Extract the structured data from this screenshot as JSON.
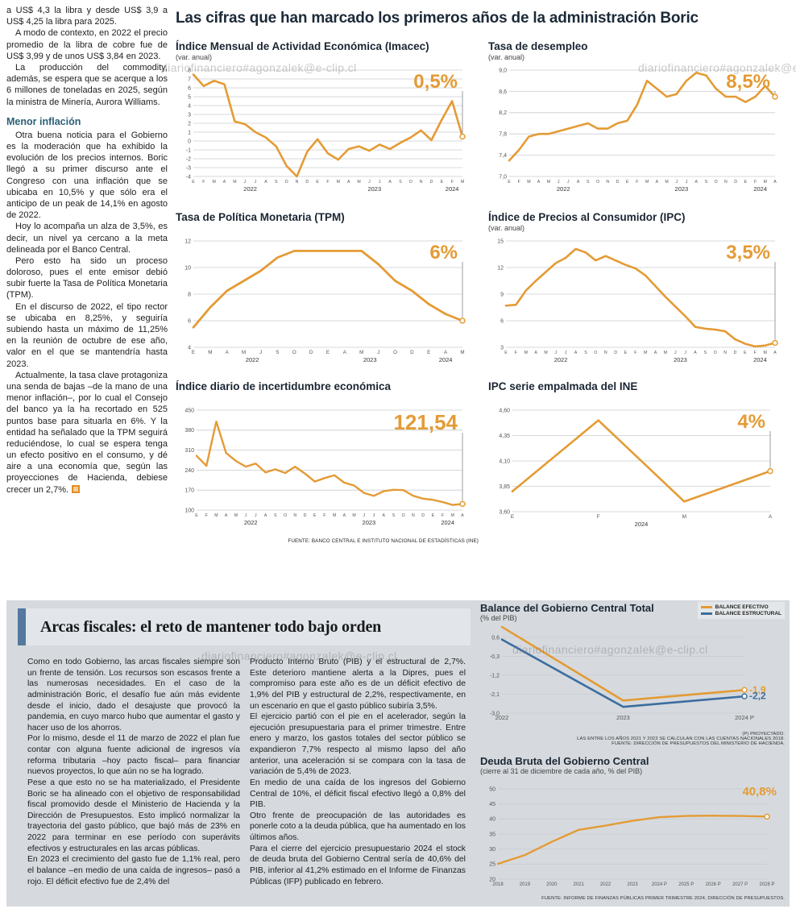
{
  "watermark": "diariofinanciero#agonzalek@e-clip.cl",
  "colors": {
    "orange": "#E49B35",
    "blue": "#3C6E9F",
    "navy": "#1C2A38",
    "teal": "#2B6077",
    "panel_gray": "#D6DADE",
    "grid": "#C8CCD1"
  },
  "headline": "Las cifras que han marcado los primeros años de la administración Boric",
  "left_column": {
    "paragraphs_top": [
      "a US$ 4,3 la libra y desde US$ 3,9 a US$ 4,25 la libra para 2025.",
      "A modo de contexto, en 2022 el precio promedio de la libra de cobre fue de US$ 3,99 y de unos US$ 3,84 en 2023.",
      "La producción del commodity, además, se espera que se acerque a los 6 millones de toneladas en 2025, según la ministra de Minería, Aurora Williams."
    ],
    "subhead": "Menor inflación",
    "paragraphs_bottom": [
      "Otra buena noticia para el Gobierno es la moderación que ha exhibido la evolución de los precios internos. Boric llegó a su primer discurso ante el Congreso con una inflación que se ubicaba en 10,5% y que sólo era el anticipo de un peak de 14,1% en agosto de 2022.",
      "Hoy lo acompaña un alza de 3,5%, es decir, un nivel ya cercano a la meta delineada por el Banco Central.",
      "Pero esto ha sido un proceso doloroso, pues el ente emisor debió subir fuerte la Tasa de Política Monetaria (TPM).",
      "En el discurso de 2022, el tipo rector se ubicaba en 8,25%, y seguiría subiendo hasta un máximo de 11,25% en la reunión de octubre de ese año, valor en el que se mantendría hasta 2023.",
      "Actualmente, la tasa clave protagoniza una senda de bajas –de la mano de una menor inflación–, por lo cual el Consejo del banco ya la ha recortado en 525 puntos base para situarla en 6%. Y la entidad ha señalado que la TPM seguirá reduciéndose, lo cual se espera tenga un efecto positivo en el consumo, y dé aire a una economía que, según las proyecciones de Hacienda, debiese crecer un 2,7%."
    ]
  },
  "charts_source": "FUENTE: BANCO CENTRAL E INSTITUTO NACIONAL DE ESTADÍSTICAS (INE)",
  "fiscal_section": {
    "title": "Arcas fiscales: el reto de mantener todo bajo orden",
    "col1": [
      "Como en todo Gobierno, las arcas fiscales siempre son un frente de tensión. Los recursos son escasos frente a las numerosas necesidades. En el caso de la administración Boric, el desafío fue aún más evidente desde el inicio, dado el desajuste que provocó la pandemia, en cuyo marco hubo que aumentar el gasto y hacer uso de los ahorros.",
      "Por lo mismo, desde el 11 de marzo de 2022 el plan fue contar con alguna fuente adicional de ingresos vía reforma tributaria –hoy pacto fiscal– para financiar nuevos proyectos, lo que aún no se ha logrado.",
      "Pese a que esto no se ha materializado, el Presidente Boric se ha alineado con el objetivo de responsabilidad fiscal promovido desde el Ministerio de Hacienda y la Dirección de Presupuestos. Esto implicó normalizar la trayectoria del gasto público, que bajó más de 23% en 2022 para terminar en ese período con superávits efectivos y estructurales en las arcas públicas.",
      "En 2023 el crecimiento del gasto fue de 1,1% real, pero el balance –en medio de una caída de ingresos– pasó a rojo. El déficit efectivo fue de 2,4% del"
    ],
    "col2": [
      "Producto Interno Bruto (PIB) y el estructural de 2,7%. Este deterioro mantiene alerta a la Dipres, pues el compromiso para este año es de un déficit efectivo de 1,9% del PIB y estructural de 2,2%, respectivamente, en un escenario en que el gasto público subiría 3,5%.",
      "El ejercicio partió con el pie en el acelerador, según la ejecución presupuestaria para el primer trimestre. Entre enero y marzo, los gastos totales del sector público se expandieron 7,7% respecto al mismo lapso del año anterior, una aceleración si se compara con la tasa de variación de 5,4% de 2023.",
      "En medio de una caída de los ingresos del Gobierno Central de 10%, el déficit fiscal efectivo llegó a 0,8% del PIB.",
      "Otro frente de preocupación de las autoridades es ponerle coto a la deuda pública, que ha aumentado en los últimos años.",
      "Para el cierre del ejercicio presupuestario 2024 el stock de deuda bruta del Gobierno Central sería de 40,6% del PIB, inferior al 41,2% estimado en el Informe de Finanzas Públicas (IFP) publicado en febrero."
    ]
  },
  "chart_data": [
    {
      "id": "imacec",
      "type": "line",
      "title": "Índice Mensual de Actividad Económica (Imacec)",
      "subtitle": "(var. anual)",
      "callout": "0,5%",
      "ylim": [
        -4,
        8
      ],
      "yticks": [
        "8",
        "7",
        "6",
        "5",
        "4",
        "3",
        "2",
        "1",
        "0",
        "-1",
        "-2",
        "-3",
        "-4"
      ],
      "x_labels": [
        "E",
        "F",
        "M",
        "A",
        "M",
        "J",
        "J",
        "A",
        "S",
        "O",
        "N",
        "D",
        "E",
        "F",
        "M",
        "A",
        "M",
        "J",
        "J",
        "A",
        "S",
        "O",
        "N",
        "D",
        "E",
        "F",
        "M"
      ],
      "year_groups": [
        {
          "label": "2022",
          "from": 0,
          "to": 11
        },
        {
          "label": "2023",
          "from": 12,
          "to": 23
        },
        {
          "label": "2024",
          "from": 24,
          "to": 26
        }
      ],
      "values": [
        7.5,
        6.2,
        6.8,
        6.4,
        2.2,
        1.9,
        1.0,
        0.4,
        -0.6,
        -2.8,
        -4.0,
        -1.2,
        0.2,
        -1.4,
        -2.1,
        -0.9,
        -0.6,
        -1.1,
        -0.4,
        -0.9,
        -0.2,
        0.4,
        1.2,
        0.1,
        2.4,
        4.5,
        0.5
      ]
    },
    {
      "id": "desempleo",
      "type": "line",
      "title": "Tasa de desempleo",
      "subtitle": "(var. anual)",
      "callout": "8,5%",
      "ylim": [
        7.0,
        9.0
      ],
      "yticks": [
        "9,0",
        "8,6",
        "8,2",
        "7,8",
        "7,4",
        "7,0"
      ],
      "x_labels": [
        "E",
        "F",
        "M",
        "A",
        "M",
        "J",
        "J",
        "A",
        "S",
        "O",
        "N",
        "D",
        "E",
        "F",
        "M",
        "A",
        "M",
        "J",
        "J",
        "A",
        "S",
        "O",
        "N",
        "D",
        "E",
        "F",
        "M",
        "A"
      ],
      "year_groups": [
        {
          "label": "2022",
          "from": 0,
          "to": 11
        },
        {
          "label": "2023",
          "from": 12,
          "to": 23
        },
        {
          "label": "2024",
          "from": 24,
          "to": 27
        }
      ],
      "values": [
        7.3,
        7.5,
        7.75,
        7.8,
        7.8,
        7.85,
        7.9,
        7.95,
        8.0,
        7.9,
        7.9,
        8.0,
        8.05,
        8.35,
        8.8,
        8.65,
        8.5,
        8.55,
        8.8,
        8.95,
        8.9,
        8.65,
        8.5,
        8.5,
        8.4,
        8.5,
        8.7,
        8.5
      ]
    },
    {
      "id": "tpm",
      "type": "line",
      "title": "Tasa de Política Monetaria (TPM)",
      "subtitle": "",
      "callout": "6%",
      "ylim": [
        4,
        12
      ],
      "yticks": [
        "12",
        "10",
        "8",
        "6",
        "4"
      ],
      "x_labels": [
        "E",
        "M",
        "A",
        "M",
        "J",
        "S",
        "O",
        "D",
        "E",
        "A",
        "M",
        "J",
        "O",
        "D",
        "E",
        "A",
        "M"
      ],
      "year_groups": [
        {
          "label": "2022",
          "from": 0,
          "to": 7
        },
        {
          "label": "2023",
          "from": 8,
          "to": 13
        },
        {
          "label": "2024",
          "from": 14,
          "to": 16
        }
      ],
      "values": [
        5.5,
        7.0,
        8.25,
        9.0,
        9.75,
        10.75,
        11.25,
        11.25,
        11.25,
        11.25,
        11.25,
        10.25,
        9.0,
        8.25,
        7.25,
        6.5,
        6.0
      ]
    },
    {
      "id": "ipc",
      "type": "line",
      "title": "Índice de Precios al Consumidor (IPC)",
      "subtitle": "(var. anual)",
      "callout": "3,5%",
      "ylim": [
        3,
        15
      ],
      "yticks": [
        "15",
        "12",
        "9",
        "6",
        "3"
      ],
      "x_labels": [
        "E",
        "F",
        "M",
        "A",
        "M",
        "J",
        "J",
        "A",
        "S",
        "O",
        "N",
        "D",
        "E",
        "F",
        "M",
        "A",
        "M",
        "J",
        "J",
        "A",
        "S",
        "O",
        "N",
        "D",
        "E",
        "F",
        "M",
        "A"
      ],
      "year_groups": [
        {
          "label": "2022",
          "from": 0,
          "to": 11
        },
        {
          "label": "2023",
          "from": 12,
          "to": 23
        },
        {
          "label": "2024",
          "from": 24,
          "to": 27
        }
      ],
      "values": [
        7.7,
        7.8,
        9.4,
        10.5,
        11.5,
        12.5,
        13.1,
        14.1,
        13.7,
        12.8,
        13.3,
        12.8,
        12.3,
        11.9,
        11.1,
        9.9,
        8.7,
        7.6,
        6.5,
        5.3,
        5.1,
        5.0,
        4.8,
        3.9,
        3.4,
        3.1,
        3.2,
        3.5
      ]
    },
    {
      "id": "incertidumbre",
      "type": "line",
      "title": "Índice diario de incertidumbre económica",
      "subtitle": "",
      "callout": "121,54",
      "ylim": [
        100,
        450
      ],
      "yticks": [
        "450",
        "380",
        "310",
        "240",
        "170",
        "100"
      ],
      "x_labels": [
        "E",
        "F",
        "M",
        "A",
        "M",
        "J",
        "J",
        "A",
        "S",
        "O",
        "N",
        "D",
        "E",
        "F",
        "M",
        "A",
        "M",
        "J",
        "J",
        "A",
        "S",
        "O",
        "N",
        "D",
        "E",
        "F",
        "M",
        "A"
      ],
      "year_groups": [
        {
          "label": "2022",
          "from": 0,
          "to": 11
        },
        {
          "label": "2023",
          "from": 12,
          "to": 23
        },
        {
          "label": "2024",
          "from": 24,
          "to": 27
        }
      ],
      "values": [
        290,
        255,
        410,
        300,
        272,
        252,
        263,
        232,
        243,
        230,
        252,
        228,
        200,
        212,
        222,
        196,
        186,
        160,
        150,
        166,
        171,
        170,
        150,
        140,
        136,
        128,
        118,
        121.54
      ]
    },
    {
      "id": "ipc_ine",
      "type": "line",
      "title": "IPC serie empalmada del INE",
      "subtitle": "",
      "callout": "4%",
      "ylim": [
        3.6,
        4.6
      ],
      "yticks": [
        "4,60",
        "4,35",
        "4,10",
        "3,85",
        "3,60"
      ],
      "x_labels": [
        "E",
        "F",
        "M",
        "A"
      ],
      "year_groups": [
        {
          "label": "2024",
          "from": 0,
          "to": 3
        }
      ],
      "values": [
        3.8,
        4.5,
        3.7,
        4.0
      ]
    },
    {
      "id": "balance",
      "type": "line",
      "title": "Balance del Gobierno Central Total",
      "subtitle": "(% del PIB)",
      "ylim": [
        -3.0,
        0.6
      ],
      "yticks": [
        "0,6",
        "-0,3",
        "-1,2",
        "-2,1",
        "-3,0"
      ],
      "x_labels": [
        "2022",
        "2023",
        "2024 P"
      ],
      "series": [
        {
          "name": "BALANCE EFECTIVO",
          "color_key": "orange",
          "values": [
            1.1,
            -2.4,
            -1.9
          ],
          "callout": "-1,9"
        },
        {
          "name": "BALANCE ESTRUCTURAL",
          "color_key": "blue",
          "values": [
            0.5,
            -2.7,
            -2.2
          ],
          "callout": "-2,2"
        }
      ],
      "footnotes": [
        "(P) PROYECTADO.",
        "LAS ENTRE LOS AÑOS 2021 Y 2023 SE CALCULAN CON LAS CUENTAS NACIONALES 2018.",
        "FUENTE: DIRECCIÓN DE PRESUPUESTOS DEL MINISTERIO DE HACIENDA."
      ]
    },
    {
      "id": "deuda",
      "type": "line",
      "title": "Deuda Bruta del Gobierno Central",
      "subtitle": "(cierre al 31 de diciembre de cada año, % del PIB)",
      "callout": "40,8%",
      "ylim": [
        20,
        50
      ],
      "yticks": [
        "50",
        "45",
        "40",
        "35",
        "30",
        "25",
        "20"
      ],
      "x_labels": [
        "2018",
        "2019",
        "2020",
        "2021",
        "2022",
        "2023",
        "2024 P",
        "2025 P",
        "2026 P",
        "2027 P",
        "2028 P"
      ],
      "year_groups": [],
      "values": [
        25.1,
        28.0,
        32.4,
        36.4,
        37.8,
        39.4,
        40.6,
        41.0,
        41.1,
        41.0,
        40.8
      ],
      "footnotes": [
        "FUENTE: INFORME DE FINANZAS PÚBLICAS PRIMER TRIMESTRE 2024, DIRECCIÓN DE PRESUPUESTOS."
      ]
    }
  ]
}
